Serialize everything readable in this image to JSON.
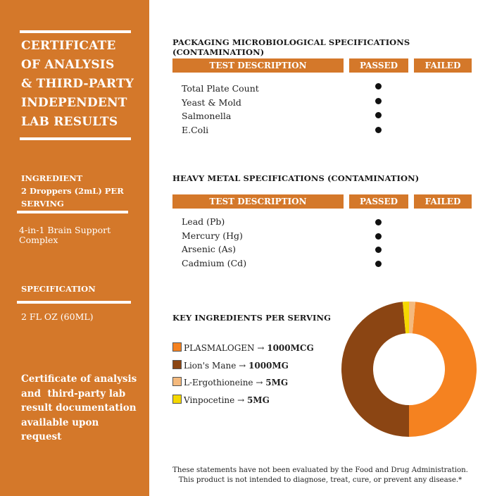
{
  "sidebar": {
    "title_lines": [
      "CERTIFICATE",
      "OF ANALYSIS",
      "& THIRD-PARTY",
      "INDEPENDENT",
      "LAB RESULTS"
    ],
    "ingredient_label": "INGREDIENT",
    "serving_label_1": "2 Droppers (2mL) PER",
    "serving_label_2": "SERVING",
    "ingredient_value_1": "4-in-1 Brain Support",
    "ingredient_value_2": "Complex",
    "spec_label": "SPECIFICATION",
    "spec_value": "2 FL OZ (60ML)",
    "note_lines": [
      "Certificate of analysis",
      "and  third-party lab",
      "result documentation",
      "available upon",
      "request"
    ],
    "color": "#d4782a"
  },
  "micro": {
    "title": "PACKAGING MICROBIOLOGICAL SPECIFICATIONS (CONTAMINATION)",
    "headers": [
      "TEST DESCRIPTION",
      "PASSED",
      "FAILED"
    ],
    "rows": [
      {
        "label": "Total Plate Count",
        "result": "passed"
      },
      {
        "label": "Yeast & Mold",
        "result": "passed"
      },
      {
        "label": "Salmonella",
        "result": "passed"
      },
      {
        "label": "E.Coli",
        "result": "passed"
      }
    ]
  },
  "metal": {
    "title": "HEAVY METAL SPECIFICATIONS (CONTAMINATION)",
    "headers": [
      "TEST DESCRIPTION",
      "PASSED",
      "FAILED"
    ],
    "rows": [
      {
        "label": "Lead (Pb)",
        "result": "passed"
      },
      {
        "label": "Mercury (Hg)",
        "result": "passed"
      },
      {
        "label": "Arsenic (As)",
        "result": "passed"
      },
      {
        "label": "Cadmium (Cd)",
        "result": "passed"
      }
    ]
  },
  "ingredients": {
    "title": "KEY INGREDIENTS PER SERVING",
    "items": [
      {
        "name": "PLASMALOGEN",
        "arrow": " → ",
        "dose": "1000MCG",
        "color": "#f58220"
      },
      {
        "name": "Lion's Mane",
        "arrow": " → ",
        "dose": "1000MG",
        "color": "#8b4513"
      },
      {
        "name": "L-Ergothioneine",
        "arrow": " → ",
        "dose": "5MG",
        "color": "#f4b97d"
      },
      {
        "name": "Vinpocetine",
        "arrow": " → ",
        "dose": "5MG",
        "color": "#f5d800"
      }
    ]
  },
  "chart_data": {
    "type": "pie",
    "donut": true,
    "categories": [
      "PLASMALOGEN",
      "Lion's Mane",
      "L-Ergothioneine",
      "Vinpocetine"
    ],
    "values": [
      1000,
      1000,
      5,
      5
    ],
    "units": [
      "MCG",
      "MG",
      "MG",
      "MG"
    ],
    "display_fractions": [
      0.485,
      0.485,
      0.015,
      0.015
    ],
    "colors": [
      "#f58220",
      "#8b4513",
      "#f4b97d",
      "#f5d800"
    ]
  },
  "disclaimer": {
    "line1": "These statements have not been evaluated by the Food and Drug Administration.",
    "line2": "This product is not intended to diagnose, treat, cure, or prevent any disease.*"
  }
}
